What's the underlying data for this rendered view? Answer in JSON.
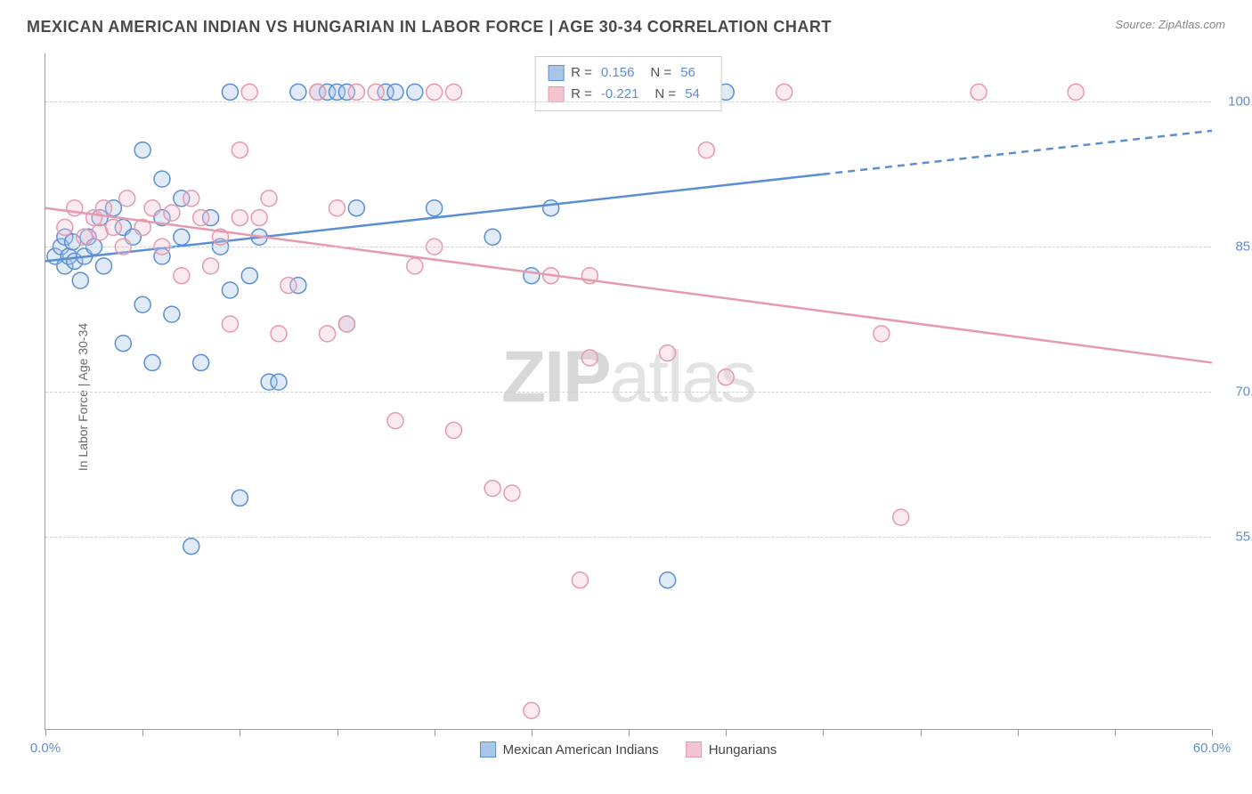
{
  "header": {
    "title": "MEXICAN AMERICAN INDIAN VS HUNGARIAN IN LABOR FORCE | AGE 30-34 CORRELATION CHART",
    "source": "Source: ZipAtlas.com"
  },
  "chart": {
    "type": "scatter",
    "y_axis_label": "In Labor Force | Age 30-34",
    "watermark": "ZIPatlas",
    "background_color": "#ffffff",
    "grid_color": "#d0d0d0",
    "axis_color": "#9a9a9a",
    "tick_label_color": "#5b8fd4",
    "title_fontsize": 18,
    "label_fontsize": 14,
    "tick_fontsize": 15,
    "xlim": [
      0,
      60
    ],
    "ylim": [
      35,
      105
    ],
    "x_ticks": [
      0,
      5,
      10,
      15,
      20,
      25,
      30,
      35,
      40,
      45,
      50,
      55,
      60
    ],
    "x_tick_labels": {
      "0": "0.0%",
      "60": "60.0%"
    },
    "y_ticks": [
      55,
      70,
      85,
      100
    ],
    "y_tick_labels": {
      "55": "55.0%",
      "70": "70.0%",
      "85": "85.0%",
      "100": "100.0%"
    },
    "marker_radius": 9,
    "marker_fill_opacity": 0.35,
    "marker_stroke_width": 1.5,
    "line_width": 2.5,
    "series": [
      {
        "name": "Mexican American Indians",
        "color": "#5b8fd4",
        "fill": "#a9c5e8",
        "R": "0.156",
        "N": "56",
        "trend": {
          "x1": 0,
          "y1": 83.5,
          "x2": 40,
          "y2": 92.5,
          "dash_from_x": 40,
          "x3": 60,
          "y3": 97.0
        },
        "points": [
          [
            0.5,
            84
          ],
          [
            0.8,
            85
          ],
          [
            1,
            83
          ],
          [
            1,
            86
          ],
          [
            1.2,
            84
          ],
          [
            1.4,
            85.5
          ],
          [
            1.5,
            83.5
          ],
          [
            1.8,
            81.5
          ],
          [
            2,
            84
          ],
          [
            2.2,
            86
          ],
          [
            2.5,
            85
          ],
          [
            2.8,
            88
          ],
          [
            3,
            83
          ],
          [
            3.5,
            89
          ],
          [
            4,
            87
          ],
          [
            4,
            75
          ],
          [
            4.5,
            86
          ],
          [
            5,
            95
          ],
          [
            5,
            79
          ],
          [
            5.5,
            73
          ],
          [
            6,
            92
          ],
          [
            6,
            84
          ],
          [
            6,
            88
          ],
          [
            6.5,
            78
          ],
          [
            7,
            90
          ],
          [
            7,
            86
          ],
          [
            7.5,
            54
          ],
          [
            8,
            73
          ],
          [
            8.5,
            88
          ],
          [
            9,
            85
          ],
          [
            9.5,
            101
          ],
          [
            9.5,
            80.5
          ],
          [
            10,
            59
          ],
          [
            10.5,
            82
          ],
          [
            11,
            86
          ],
          [
            11.5,
            71
          ],
          [
            12,
            71
          ],
          [
            13,
            101
          ],
          [
            13,
            81
          ],
          [
            14,
            101
          ],
          [
            14.5,
            101
          ],
          [
            15,
            101
          ],
          [
            15.5,
            101
          ],
          [
            15.5,
            77
          ],
          [
            16,
            89
          ],
          [
            17.5,
            101
          ],
          [
            18,
            101
          ],
          [
            19,
            101
          ],
          [
            20,
            89
          ],
          [
            23,
            86
          ],
          [
            25,
            82
          ],
          [
            26,
            89
          ],
          [
            31,
            101
          ],
          [
            32,
            50.5
          ],
          [
            33,
            101
          ],
          [
            35,
            101
          ]
        ]
      },
      {
        "name": "Hungarians",
        "color": "#e59aae",
        "fill": "#f3c3d0",
        "R": "-0.221",
        "N": "54",
        "trend": {
          "x1": 0,
          "y1": 89,
          "x2": 60,
          "y2": 73,
          "dash_from_x": 60,
          "x3": 60,
          "y3": 73
        },
        "points": [
          [
            1,
            87
          ],
          [
            1.5,
            89
          ],
          [
            2,
            86
          ],
          [
            2.5,
            88
          ],
          [
            2.8,
            86.5
          ],
          [
            3,
            89
          ],
          [
            3.5,
            87
          ],
          [
            4,
            85
          ],
          [
            4.2,
            90
          ],
          [
            5,
            87
          ],
          [
            5.5,
            89
          ],
          [
            6,
            85
          ],
          [
            6.5,
            88.5
          ],
          [
            7,
            82
          ],
          [
            7.5,
            90
          ],
          [
            8,
            88
          ],
          [
            8.5,
            83
          ],
          [
            9,
            86
          ],
          [
            9.5,
            77
          ],
          [
            10,
            95
          ],
          [
            10,
            88
          ],
          [
            10.5,
            101
          ],
          [
            11,
            88
          ],
          [
            11.5,
            90
          ],
          [
            12,
            76
          ],
          [
            12.5,
            81
          ],
          [
            14,
            101
          ],
          [
            14.5,
            76
          ],
          [
            15,
            89
          ],
          [
            15.5,
            77
          ],
          [
            16,
            101
          ],
          [
            17,
            101
          ],
          [
            18,
            67
          ],
          [
            19,
            83
          ],
          [
            20,
            85
          ],
          [
            20,
            101
          ],
          [
            21,
            66
          ],
          [
            21,
            101
          ],
          [
            23,
            60
          ],
          [
            24,
            59.5
          ],
          [
            25,
            37
          ],
          [
            26,
            82
          ],
          [
            27.5,
            50.5
          ],
          [
            28,
            73.5
          ],
          [
            30,
            101
          ],
          [
            32,
            74
          ],
          [
            34,
            95
          ],
          [
            35,
            71.5
          ],
          [
            38,
            101
          ],
          [
            43,
            76
          ],
          [
            44,
            57
          ],
          [
            48,
            101
          ],
          [
            53,
            101
          ],
          [
            28,
            82
          ]
        ]
      }
    ],
    "legend": {
      "stats_label_R": "R =",
      "stats_label_N": "N =",
      "items": [
        "Mexican American Indians",
        "Hungarians"
      ]
    }
  }
}
